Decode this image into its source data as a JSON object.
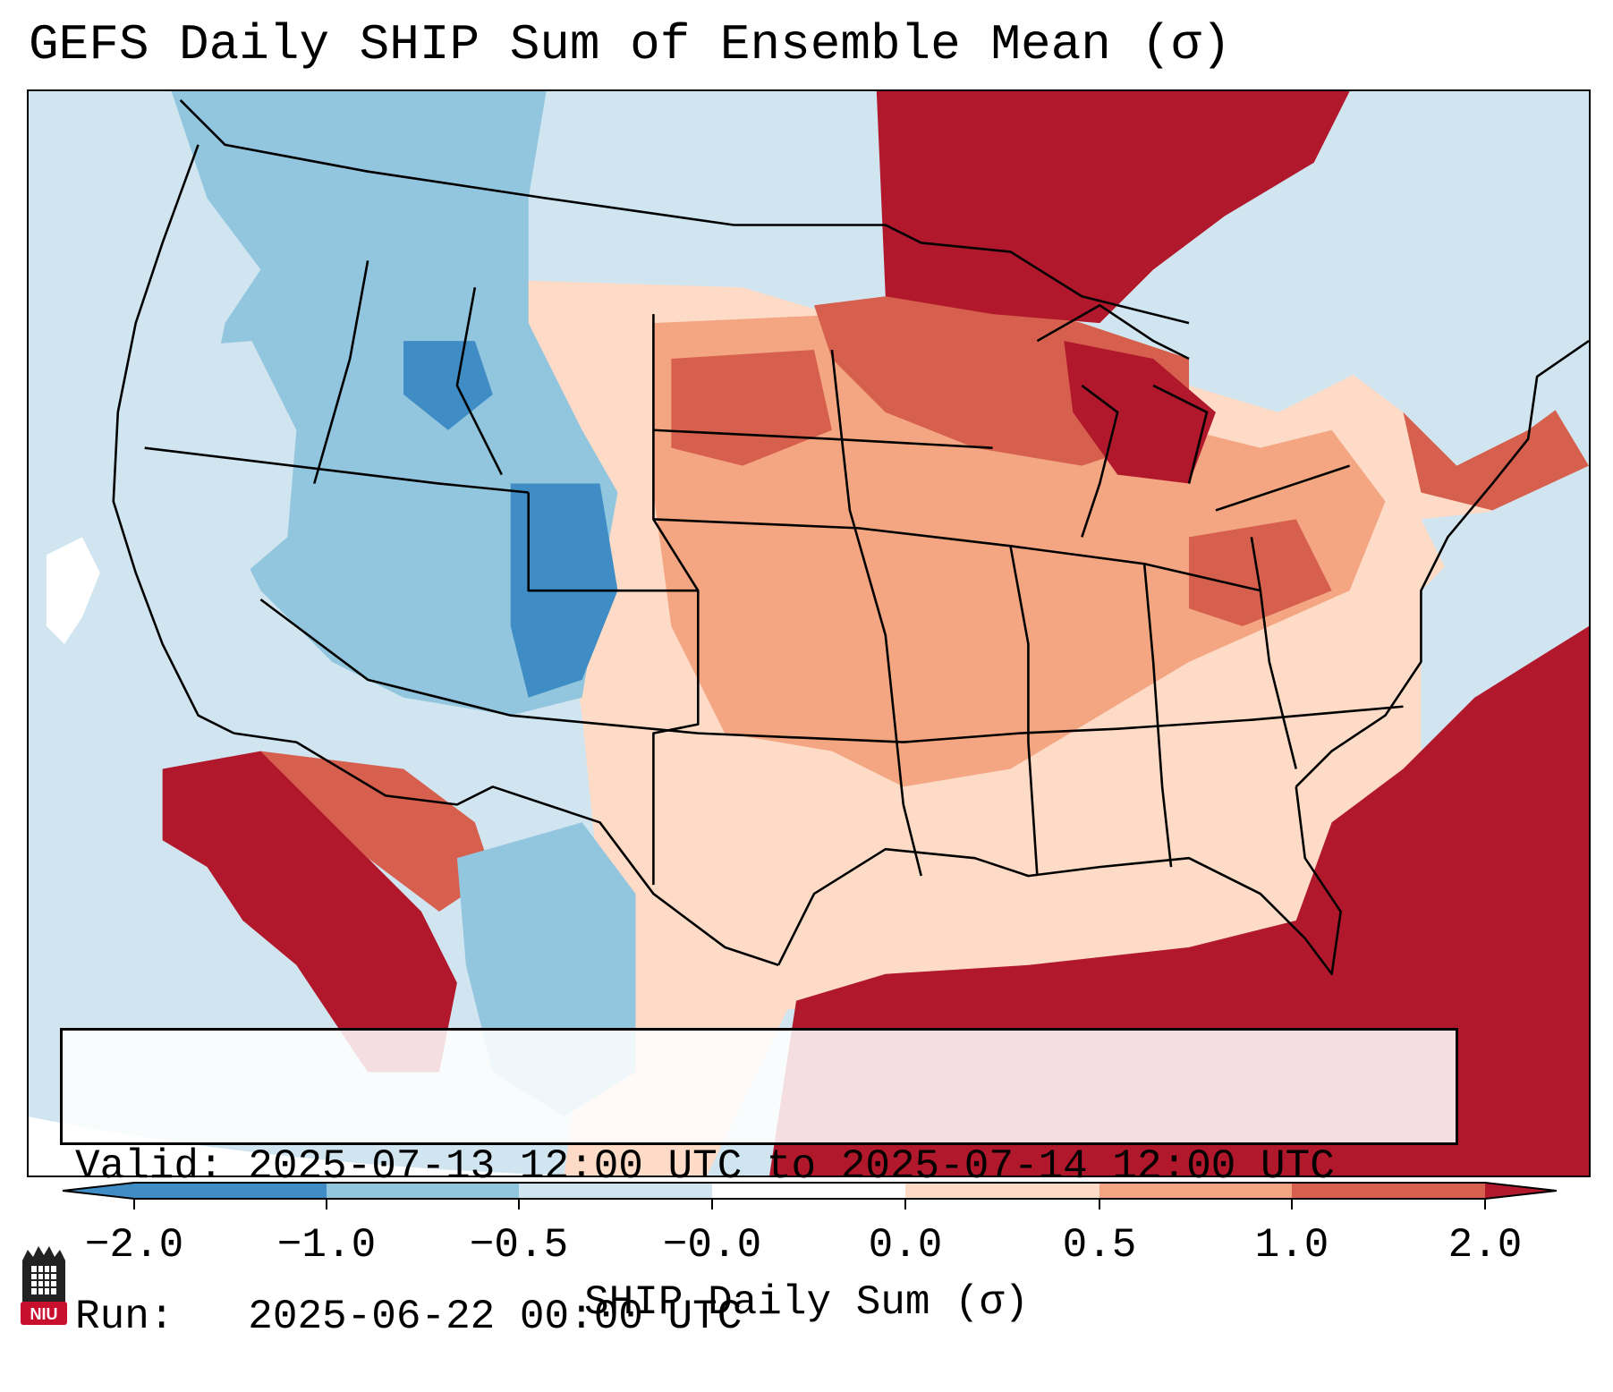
{
  "title": "GEFS Daily SHIP Sum of Ensemble Mean (σ)",
  "info": {
    "valid": "Valid: 2025-07-13 12:00 UTC to 2025-07-14 12:00 UTC",
    "run": "Run:   2025-06-22 00:00 UTC"
  },
  "colorbar": {
    "label": "SHIP Daily Sum (σ)",
    "ticks": [
      "−2.0",
      "−1.0",
      "−0.5",
      "−0.0",
      "0.0",
      "0.5",
      "1.0",
      "2.0"
    ],
    "colors": [
      "#3f8dc4",
      "#92c5de",
      "#d1e5f0",
      "#ffffff",
      "#fddbc7",
      "#f4a582",
      "#d6604d",
      "#b2182b"
    ],
    "extend": "both"
  },
  "logo": {
    "text": "NIU",
    "color": "#c8102e"
  },
  "map": {
    "region": "Continental United States",
    "ocean_color": "#d1e5f0",
    "border_color": "#000000"
  }
}
